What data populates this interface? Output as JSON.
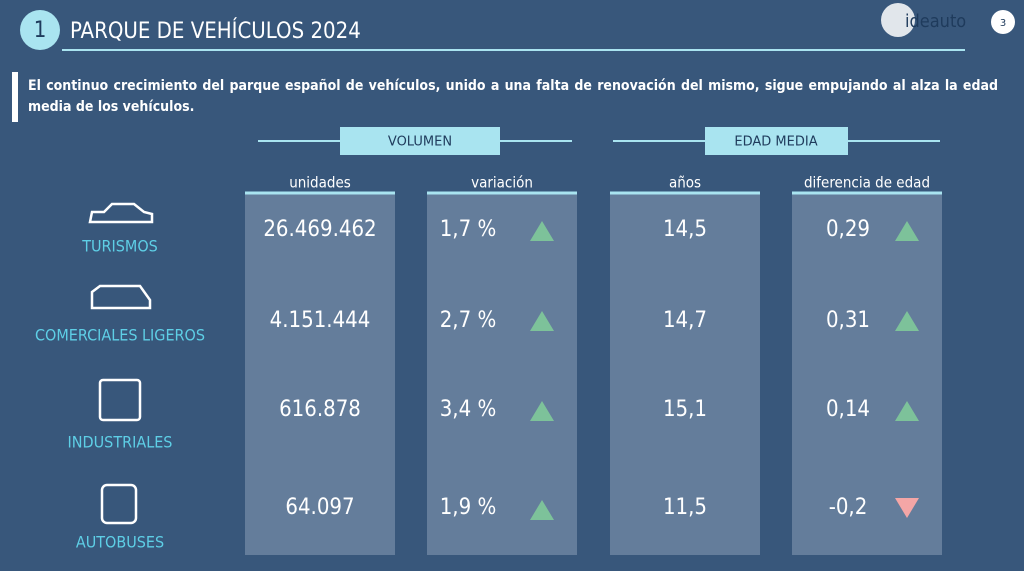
{
  "header": {
    "number": "1",
    "title": "PARQUE DE VEHÍCULOS 2024",
    "logo": "ideauto",
    "page": "3"
  },
  "intro": "El continuo crecimiento del parque español de vehículos, unido a una falta de renovación del mismo, sigue empujando al alza la edad media de los vehículos.",
  "groups": [
    "VOLUMEN",
    "EDAD MEDIA"
  ],
  "columns": [
    "unidades",
    "variación",
    "años",
    "diferencia de edad"
  ],
  "rows": [
    {
      "label": "TURISMOS",
      "values": [
        "26.469.462",
        "1,7 %",
        "14,5",
        "0,29"
      ]
    },
    {
      "label": "COMERCIALES LIGEROS",
      "values": [
        "4.151.444",
        "2,7 %",
        "14,7",
        "0,31"
      ]
    },
    {
      "label": "INDUSTRIALES",
      "values": [
        "616.878",
        "3,4 %",
        "15,1",
        "0,14"
      ]
    },
    {
      "label": "AUTOBUSES",
      "values": [
        "64.097",
        "1,9 %",
        "11,5",
        "-0,2"
      ]
    }
  ]
}
